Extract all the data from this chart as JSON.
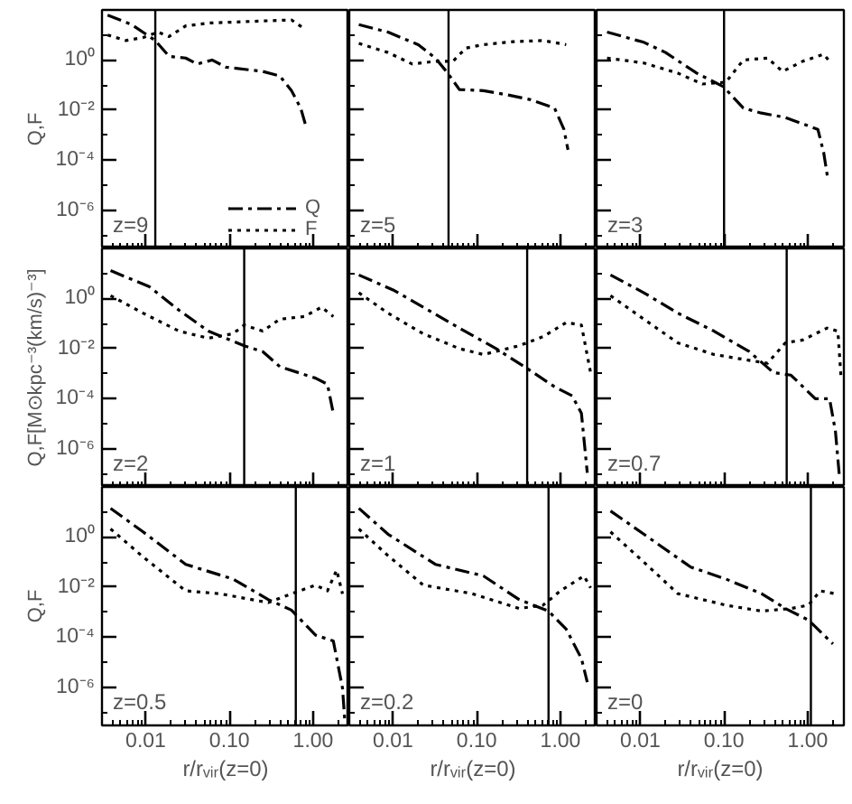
{
  "chart_data": [
    {
      "type": "line",
      "annotations": [
        "z=9"
      ],
      "ylabel": "Q,F",
      "log": "xy",
      "grid": false,
      "legend": "bottom right",
      "tick_labels": "y",
      "xlim": [
        0.003,
        2.7
      ],
      "ylim": [
        3e-08,
        100
      ],
      "xticks": [
        {
          "value": 0.01,
          "label": null
        },
        {
          "value": 0.1,
          "label": null
        },
        {
          "value": 1,
          "label": null
        }
      ],
      "yticks": [
        {
          "value": 1,
          "label": "10⁰"
        },
        {
          "value": 0.01,
          "label": "10⁻²"
        },
        {
          "value": 0.0001,
          "label": "10⁻⁴"
        },
        {
          "value": 1e-06,
          "label": "10⁻⁶"
        }
      ],
      "ref_lines": [
        {
          "axis": "x",
          "value": 0.013,
          "color": "#000000"
        }
      ],
      "series": [
        {
          "name": "Q",
          "color": "#000000",
          "line_style": "dashdot",
          "x": [
            0.0035,
            0.0068,
            0.013,
            0.019,
            0.03,
            0.041,
            0.062,
            0.091,
            0.25,
            0.4,
            0.55,
            0.71,
            0.81
          ],
          "values": [
            62,
            26,
            6.0,
            1.4,
            1.2,
            0.69,
            1.0,
            0.52,
            0.35,
            0.23,
            0.06,
            0.012,
            0.0026
          ]
        },
        {
          "name": "F",
          "color": "#000000",
          "line_style": "dotted",
          "x": [
            0.0035,
            0.0058,
            0.0093,
            0.014,
            0.019,
            0.03,
            0.056,
            0.15,
            0.55,
            0.78
          ],
          "values": [
            10,
            6.0,
            7.9,
            13,
            8.7,
            23,
            30,
            34,
            40,
            18
          ]
        }
      ]
    },
    {
      "type": "line",
      "annotations": [
        "z=5"
      ],
      "log": "xy",
      "grid": false,
      "tick_labels": false,
      "xlim": [
        0.003,
        2.7
      ],
      "ylim": [
        3e-08,
        100
      ],
      "xticks": [
        {
          "value": 0.01,
          "label": null
        },
        {
          "value": 0.1,
          "label": null
        },
        {
          "value": 1,
          "label": null
        }
      ],
      "yticks": [
        {
          "value": 1,
          "label": null
        },
        {
          "value": 0.01,
          "label": null
        },
        {
          "value": 0.0001,
          "label": null
        },
        {
          "value": 1e-06,
          "label": null
        }
      ],
      "ref_lines": [
        {
          "axis": "x",
          "value": 0.046,
          "color": "#000000"
        }
      ],
      "series": [
        {
          "color": "#000000",
          "line_style": "dashdot",
          "x": [
            0.0039,
            0.0087,
            0.02,
            0.032,
            0.045,
            0.062,
            0.12,
            0.23,
            0.44,
            0.85,
            1.1,
            1.23
          ],
          "values": [
            26,
            13,
            4.1,
            1.2,
            0.3,
            0.066,
            0.06,
            0.041,
            0.026,
            0.012,
            0.0017,
            0.00026
          ]
        },
        {
          "color": "#000000",
          "line_style": "dotted",
          "x": [
            0.0039,
            0.0087,
            0.017,
            0.032,
            0.052,
            0.074,
            0.12,
            0.27,
            0.62,
            1.17
          ],
          "values": [
            4.6,
            2.0,
            0.69,
            0.89,
            0.89,
            3.0,
            4.1,
            5.4,
            6.0,
            4.1
          ]
        }
      ]
    },
    {
      "type": "line",
      "annotations": [
        "z=3"
      ],
      "log": "xy",
      "grid": false,
      "tick_labels": false,
      "xlim": [
        0.003,
        2.7
      ],
      "ylim": [
        3e-08,
        100
      ],
      "xticks": [
        {
          "value": 0.01,
          "label": null
        },
        {
          "value": 0.1,
          "label": null
        },
        {
          "value": 1,
          "label": null
        }
      ],
      "yticks": [
        {
          "value": 1,
          "label": null
        },
        {
          "value": 0.01,
          "label": null
        },
        {
          "value": 0.0001,
          "label": null
        },
        {
          "value": 1e-06,
          "label": null
        }
      ],
      "ref_lines": [
        {
          "axis": "x",
          "value": 0.1,
          "color": "#000000"
        }
      ],
      "series": [
        {
          "color": "#000000",
          "line_style": "dashdot",
          "x": [
            0.004,
            0.011,
            0.02,
            0.047,
            0.098,
            0.17,
            0.28,
            0.54,
            1.32,
            1.55,
            1.74
          ],
          "values": [
            13,
            5.1,
            2.0,
            0.3,
            0.087,
            0.012,
            0.0076,
            0.0051,
            0.0017,
            0.0002,
            1.7e-05
          ]
        },
        {
          "color": "#000000",
          "line_style": "dotted",
          "x": [
            0.004,
            0.011,
            0.028,
            0.055,
            0.105,
            0.17,
            0.33,
            0.5,
            0.87,
            1.55,
            1.82
          ],
          "values": [
            1.2,
            0.76,
            0.3,
            0.11,
            0.13,
            1.0,
            1.2,
            0.35,
            0.89,
            1.7,
            0.89
          ]
        }
      ]
    },
    {
      "type": "line",
      "annotations": [
        "z=2"
      ],
      "ylabel": "Q,F[M⊙kpc⁻³(km/s)⁻³]",
      "log": "xy",
      "grid": false,
      "tick_labels": "y",
      "xlim": [
        0.003,
        2.7
      ],
      "ylim": [
        3e-08,
        100
      ],
      "xticks": [
        {
          "value": 0.01,
          "label": null
        },
        {
          "value": 0.1,
          "label": null
        },
        {
          "value": 1,
          "label": null
        }
      ],
      "yticks": [
        {
          "value": 1,
          "label": "10⁰"
        },
        {
          "value": 0.01,
          "label": "10⁻²"
        },
        {
          "value": 0.0001,
          "label": "10⁻⁴"
        },
        {
          "value": 1e-06,
          "label": "10⁻⁶"
        }
      ],
      "ref_lines": [
        {
          "axis": "x",
          "value": 0.15,
          "color": "#000000"
        }
      ],
      "series": [
        {
          "color": "#000000",
          "line_style": "dashdot",
          "x": [
            0.0038,
            0.011,
            0.025,
            0.056,
            0.15,
            0.25,
            0.4,
            1.07,
            1.48,
            1.74
          ],
          "values": [
            13,
            3.0,
            0.34,
            0.05,
            0.013,
            0.0076,
            0.0019,
            0.00066,
            0.00038,
            2.6e-05
          ]
        },
        {
          "color": "#000000",
          "line_style": "dotted",
          "x": [
            0.0038,
            0.0093,
            0.025,
            0.056,
            0.11,
            0.15,
            0.25,
            0.4,
            0.78,
            1.26,
            1.74
          ],
          "values": [
            1.3,
            0.26,
            0.05,
            0.026,
            0.039,
            0.087,
            0.05,
            0.15,
            0.19,
            0.45,
            0.19
          ]
        }
      ]
    },
    {
      "type": "line",
      "annotations": [
        "z=1"
      ],
      "log": "xy",
      "grid": false,
      "tick_labels": false,
      "xlim": [
        0.003,
        2.7
      ],
      "ylim": [
        3e-08,
        100
      ],
      "xticks": [
        {
          "value": 0.01,
          "label": null
        },
        {
          "value": 0.1,
          "label": null
        },
        {
          "value": 1,
          "label": null
        }
      ],
      "yticks": [
        {
          "value": 1,
          "label": null
        },
        {
          "value": 0.01,
          "label": null
        },
        {
          "value": 0.0001,
          "label": null
        },
        {
          "value": 1e-06,
          "label": null
        }
      ],
      "ref_lines": [
        {
          "axis": "x",
          "value": 0.4,
          "color": "#000000"
        }
      ],
      "series": [
        {
          "color": "#000000",
          "line_style": "dashdot",
          "x": [
            0.0039,
            0.01,
            0.023,
            0.062,
            0.17,
            0.37,
            0.85,
            1.38,
            1.78,
            2.09
          ],
          "values": [
            8.7,
            2.2,
            0.45,
            0.066,
            0.01,
            0.0019,
            0.0003,
            0.00013,
            2.6e-05,
            1.1e-07
          ]
        },
        {
          "color": "#000000",
          "line_style": "dotted",
          "x": [
            0.0039,
            0.0087,
            0.023,
            0.062,
            0.12,
            0.32,
            0.62,
            1.17,
            1.78,
            2.29
          ],
          "values": [
            1.7,
            0.26,
            0.039,
            0.01,
            0.0058,
            0.013,
            0.03,
            0.11,
            0.087,
            0.0011
          ]
        }
      ]
    },
    {
      "type": "line",
      "annotations": [
        "z=0.7"
      ],
      "log": "xy",
      "grid": false,
      "tick_labels": false,
      "xlim": [
        0.003,
        2.7
      ],
      "ylim": [
        3e-08,
        100
      ],
      "xticks": [
        {
          "value": 0.01,
          "label": null
        },
        {
          "value": 0.1,
          "label": null
        },
        {
          "value": 1,
          "label": null
        }
      ],
      "yticks": [
        {
          "value": 1,
          "label": null
        },
        {
          "value": 0.01,
          "label": null
        },
        {
          "value": 0.0001,
          "label": null
        },
        {
          "value": 1e-06,
          "label": null
        }
      ],
      "ref_lines": [
        {
          "axis": "x",
          "value": 0.56,
          "color": "#000000"
        }
      ],
      "series": [
        {
          "color": "#000000",
          "line_style": "dashdot",
          "x": [
            0.0044,
            0.011,
            0.028,
            0.076,
            0.2,
            0.39,
            0.63,
            1.23,
            1.82,
            2.14,
            2.4
          ],
          "values": [
            8.7,
            1.7,
            0.26,
            0.05,
            0.0076,
            0.0011,
            0.00087,
            0.0001,
            0.0001,
            5e-06,
            6.6e-08
          ]
        },
        {
          "color": "#000000",
          "line_style": "dotted",
          "x": [
            0.0044,
            0.011,
            0.028,
            0.076,
            0.2,
            0.33,
            0.54,
            0.87,
            1.7,
            2.29,
            2.5
          ],
          "values": [
            1.3,
            0.15,
            0.017,
            0.0058,
            0.0034,
            0.0026,
            0.017,
            0.022,
            0.066,
            0.05,
            0.00066
          ]
        }
      ]
    },
    {
      "type": "line",
      "annotations": [
        "z=0.5"
      ],
      "ylabel": "Q,F",
      "xlabel": "r/rᵥᵢᵣ(z=0)",
      "log": "xy",
      "grid": false,
      "xlim": [
        0.003,
        2.7
      ],
      "ylim": [
        3e-08,
        100
      ],
      "xticks": [
        {
          "value": 0.01,
          "label": "0.01"
        },
        {
          "value": 0.1,
          "label": "0.10"
        },
        {
          "value": 1,
          "label": "1.00"
        }
      ],
      "yticks": [
        {
          "value": 1,
          "label": "10⁰"
        },
        {
          "value": 0.01,
          "label": "10⁻²"
        },
        {
          "value": 0.0001,
          "label": "10⁻⁴"
        },
        {
          "value": 1e-06,
          "label": "10⁻⁶"
        }
      ],
      "ref_lines": [
        {
          "axis": "x",
          "value": 0.62,
          "color": "#000000"
        }
      ],
      "series": [
        {
          "color": "#000000",
          "line_style": "dashdot",
          "x": [
            0.0038,
            0.0093,
            0.03,
            0.11,
            0.29,
            0.55,
            1.07,
            1.74,
            2.24,
            2.4
          ],
          "values": [
            14,
            1.6,
            0.081,
            0.021,
            0.0032,
            0.0012,
            0.00012,
            7.1e-05,
            9.3e-07,
            3.5e-08
          ]
        },
        {
          "color": "#000000",
          "line_style": "dotted",
          "x": [
            0.0038,
            0.0093,
            0.03,
            0.078,
            0.29,
            0.55,
            1.07,
            1.48,
            1.91,
            2.24
          ],
          "values": [
            2.1,
            0.16,
            0.0071,
            0.0054,
            0.0024,
            0.0054,
            0.012,
            0.0071,
            0.048,
            0.0054
          ]
        }
      ]
    },
    {
      "type": "line",
      "annotations": [
        "z=0.2"
      ],
      "xlabel": "r/rᵥᵢᵣ(z=0)",
      "log": "xy",
      "grid": false,
      "tick_labels": "x",
      "xlim": [
        0.003,
        2.7
      ],
      "ylim": [
        3e-08,
        100
      ],
      "xticks": [
        {
          "value": 0.01,
          "label": "0.01"
        },
        {
          "value": 0.1,
          "label": "0.10"
        },
        {
          "value": 1,
          "label": "1.00"
        }
      ],
      "yticks": [
        {
          "value": 1,
          "label": null
        },
        {
          "value": 0.01,
          "label": null
        },
        {
          "value": 0.0001,
          "label": null
        },
        {
          "value": 1e-06,
          "label": null
        }
      ],
      "ref_lines": [
        {
          "axis": "x",
          "value": 0.72,
          "color": "#000000"
        }
      ],
      "series": [
        {
          "color": "#000000",
          "line_style": "dashdot",
          "x": [
            0.0039,
            0.0087,
            0.032,
            0.12,
            0.32,
            0.72,
            1.17,
            1.78,
            2.09
          ],
          "values": [
            14,
            1.3,
            0.081,
            0.028,
            0.0032,
            0.0011,
            0.00021,
            1.4e-05,
            1.6e-06
          ]
        },
        {
          "color": "#000000",
          "line_style": "dotted",
          "x": [
            0.0039,
            0.0087,
            0.023,
            0.087,
            0.32,
            0.62,
            1.0,
            1.91,
            2.29
          ],
          "values": [
            2.1,
            0.18,
            0.012,
            0.0055,
            0.0014,
            0.0019,
            0.0071,
            0.028,
            0.0093
          ]
        }
      ]
    },
    {
      "type": "line",
      "annotations": [
        "z=0"
      ],
      "xlabel": "r/rᵥᵢᵣ(z=0)",
      "log": "xy",
      "grid": false,
      "tick_labels": "x",
      "xlim": [
        0.003,
        2.7
      ],
      "ylim": [
        3e-08,
        100
      ],
      "xticks": [
        {
          "value": 0.01,
          "label": "0.01"
        },
        {
          "value": 0.1,
          "label": "0.10"
        },
        {
          "value": 1,
          "label": "1.00"
        }
      ],
      "yticks": [
        {
          "value": 1,
          "label": null
        },
        {
          "value": 0.01,
          "label": null
        },
        {
          "value": 0.0001,
          "label": null
        },
        {
          "value": 1e-06,
          "label": null
        }
      ],
      "ref_lines": [
        {
          "axis": "x",
          "value": 1.09,
          "color": "#000000"
        }
      ],
      "series": [
        {
          "color": "#000000",
          "line_style": "dashdot",
          "x": [
            0.0044,
            0.011,
            0.04,
            0.105,
            0.28,
            0.54,
            1.02,
            2.0
          ],
          "values": [
            11,
            1.3,
            0.063,
            0.021,
            0.0055,
            0.0014,
            0.00048,
            5.4e-05
          ]
        },
        {
          "color": "#000000",
          "line_style": "dotted",
          "x": [
            0.0044,
            0.011,
            0.028,
            0.105,
            0.28,
            0.63,
            1.02,
            1.41,
            2.14
          ],
          "values": [
            1.6,
            0.1,
            0.0055,
            0.0019,
            0.0011,
            0.0014,
            0.0019,
            0.0071,
            0.0054
          ]
        }
      ]
    }
  ]
}
